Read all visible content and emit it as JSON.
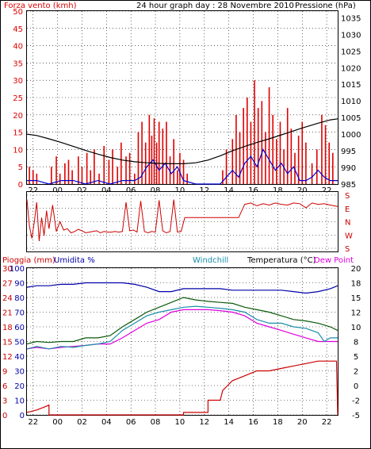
{
  "header": {
    "title": "24 hour graph day : 28 Novembre 2010",
    "wind_label": "Forza vento (kmh)",
    "pressure_label": "Pressione (hPa)"
  },
  "colors": {
    "wind": "#e00000",
    "pressure": "#000000",
    "gust_base": "#0000cc",
    "direction": "#cc0000",
    "rain": "#cc0000",
    "humidity": "#0000aa",
    "windchill": "#1a8fa8",
    "temperature": "#0a5a0a",
    "dew_point": "#dd00dd",
    "frame": "#000000"
  },
  "chart_data": [
    {
      "type": "line",
      "title": "24 hour graph day : 28 Novembre 2010",
      "ylabel": "Forza vento (kmh)",
      "y2label": "Pressione (hPa)",
      "x_tick_labels": [
        "22",
        "00",
        "02",
        "04",
        "06",
        "08",
        "10",
        "12",
        "14",
        "16",
        "18",
        "20",
        "22"
      ],
      "y_ticks": [
        0,
        5,
        10,
        15,
        20,
        25,
        30,
        35,
        40,
        45,
        50
      ],
      "ylim": [
        0,
        50
      ],
      "y2_ticks": [
        985,
        990,
        995,
        1000,
        1005,
        1010,
        1015,
        1020,
        1025,
        1030,
        1035
      ],
      "y2lim": [
        985,
        1037
      ],
      "x_range_hours": [
        -1.8,
        23.6
      ],
      "series": [
        {
          "name": "Pressione",
          "x": [
            -1.8,
            -1,
            0,
            1,
            2,
            3,
            4,
            5,
            6,
            7,
            8,
            9,
            10,
            11,
            12,
            13,
            14,
            15,
            16,
            17,
            18,
            19,
            20,
            21,
            22,
            23,
            23.6
          ],
          "values": [
            1000,
            999.6,
            998.6,
            997.5,
            996.3,
            995.1,
            994.0,
            993.0,
            992.2,
            991.7,
            991.4,
            991.2,
            991.1,
            991.1,
            991.4,
            992.2,
            993.5,
            995.0,
            996.3,
            997.5,
            998.6,
            999.8,
            1001,
            1002.2,
            1003.3,
            1004.3,
            1004.6
          ]
        },
        {
          "name": "Forza vento",
          "x": [
            -1.6,
            -1.3,
            -1,
            0.2,
            0.6,
            0.9,
            1.3,
            1.6,
            1.9,
            2.4,
            2.7,
            3.1,
            3.4,
            3.7,
            4.1,
            4.5,
            4.9,
            5.2,
            5.6,
            5.9,
            6.3,
            6.6,
            7.0,
            7.3,
            7.6,
            7.9,
            8.2,
            8.4,
            8.6,
            8.8,
            9.0,
            9.3,
            9.6,
            9.9,
            10.2,
            10.5,
            10.7,
            11.0,
            11.3,
            14.2,
            14.5,
            15.0,
            15.3,
            15.6,
            15.9,
            16.2,
            16.5,
            16.8,
            17.1,
            17.4,
            17.7,
            18.0,
            18.3,
            18.6,
            18.9,
            19.2,
            19.5,
            19.8,
            20.1,
            20.4,
            20.7,
            21.0,
            21.5,
            21.9,
            22.3,
            22.6,
            22.9,
            23.2
          ],
          "values": [
            5,
            4,
            3,
            5,
            8,
            3,
            6,
            7,
            4,
            8,
            5,
            9,
            4,
            10,
            3,
            11,
            7,
            10,
            5,
            12,
            8,
            9,
            3,
            15,
            18,
            12,
            20,
            14,
            19,
            12,
            18,
            16,
            18,
            8,
            13,
            4,
            9,
            7,
            3,
            4,
            10,
            13,
            20,
            15,
            22,
            25,
            18,
            30,
            22,
            24,
            15,
            28,
            20,
            13,
            18,
            10,
            22,
            16,
            9,
            14,
            18,
            12,
            6,
            10,
            20,
            17,
            12,
            9
          ]
        },
        {
          "name": "Raffiche base",
          "x": [
            -1.8,
            -1,
            0,
            1,
            2,
            3,
            4,
            5,
            6,
            7,
            7.5,
            8,
            8.5,
            9,
            9.5,
            10,
            10.5,
            11,
            12,
            13,
            14,
            14.5,
            15,
            15.5,
            16,
            16.5,
            17,
            17.5,
            18,
            18.5,
            19,
            19.5,
            20,
            20.5,
            21,
            21.5,
            22,
            22.5,
            23,
            23.6
          ],
          "values": [
            1,
            1,
            0,
            1,
            1,
            0,
            1,
            0,
            1,
            1,
            2,
            5,
            7,
            4,
            6,
            3,
            5,
            1,
            0,
            0,
            0,
            2,
            4,
            2,
            6,
            8,
            5,
            10,
            7,
            4,
            6,
            3,
            5,
            1,
            1,
            2,
            4,
            2,
            1,
            1
          ]
        }
      ]
    },
    {
      "type": "line",
      "title": "",
      "y_tick_labels": [
        "S",
        "E",
        "N",
        "W",
        "S"
      ],
      "ylim": [
        0,
        360
      ],
      "series": [
        {
          "name": "Direzione vento",
          "x": [
            -1.8,
            -1.6,
            -1.4,
            -1.2,
            -1.0,
            -0.8,
            -0.6,
            -0.4,
            -0.2,
            0,
            0.3,
            0.6,
            0.9,
            1.2,
            1.5,
            1.8,
            2.1,
            2.4,
            2.7,
            3.0,
            3.3,
            3.6,
            3.9,
            4.2,
            4.5,
            4.8,
            5.1,
            5.4,
            5.7,
            6.0,
            6.3,
            6.6,
            6.9,
            7.2,
            7.5,
            7.8,
            8.1,
            8.4,
            8.7,
            9.0,
            9.3,
            9.6,
            9.9,
            10.2,
            10.5,
            10.8,
            11.1,
            11.4,
            11.7,
            12.0,
            12.5,
            13.0,
            13.5,
            14.0,
            14.5,
            15.0,
            15.5,
            16.0,
            16.5,
            17.0,
            17.5,
            18.0,
            18.5,
            19.0,
            19.5,
            20.0,
            20.5,
            21.0,
            21.5,
            22.0,
            22.5,
            23.0,
            23.6
          ],
          "values": [
            20,
            210,
            300,
            180,
            40,
            320,
            150,
            280,
            100,
            230,
            60,
            250,
            180,
            240,
            230,
            260,
            250,
            235,
            245,
            260,
            255,
            250,
            245,
            260,
            250,
            255,
            255,
            250,
            255,
            250,
            40,
            245,
            240,
            255,
            30,
            250,
            260,
            250,
            255,
            25,
            245,
            260,
            250,
            20,
            255,
            250,
            150,
            150,
            150,
            150,
            150,
            150,
            150,
            150,
            150,
            150,
            150,
            55,
            45,
            65,
            50,
            60,
            45,
            55,
            60,
            45,
            50,
            80,
            45,
            55,
            50,
            60,
            70
          ]
        }
      ]
    },
    {
      "type": "line",
      "title": "",
      "left_axis_label": "Pioggia (mm)",
      "left_axis2_label": "Umidita %",
      "right_axis_label": "Temperatura (°C)",
      "series_labels": [
        "Windchill",
        "Dew Point"
      ],
      "rain_ticks": [
        0,
        3,
        6,
        9,
        12,
        15,
        18,
        21,
        24,
        27,
        30
      ],
      "rain_lim": [
        0,
        30
      ],
      "humidity_ticks": [
        0,
        10,
        20,
        30,
        40,
        50,
        60,
        70,
        80,
        90,
        100
      ],
      "humidity_lim": [
        0,
        100
      ],
      "temp_ticks": [
        -5,
        -2,
        0,
        2,
        5,
        8,
        10,
        12,
        15,
        18,
        20
      ],
      "temp_lim": [
        -5,
        20
      ],
      "x_tick_labels": [
        "22",
        "00",
        "02",
        "04",
        "06",
        "08",
        "10",
        "12",
        "14",
        "16",
        "18",
        "20",
        "22"
      ],
      "series": [
        {
          "name": "Umidita %",
          "x": [
            -1.8,
            -1,
            0,
            1,
            2,
            3,
            4,
            5,
            6,
            7,
            8,
            9,
            10,
            11,
            12,
            13,
            14,
            15,
            16,
            17,
            18,
            19,
            20,
            21,
            22,
            23,
            23.6
          ],
          "values": [
            87,
            88,
            88,
            89,
            89,
            90,
            90,
            90,
            90,
            89,
            87,
            84,
            84,
            86,
            86,
            86,
            86,
            85,
            85,
            85,
            85,
            85,
            84,
            83,
            84,
            86,
            88
          ]
        },
        {
          "name": "Windchill",
          "x": [
            -1.8,
            -1,
            0,
            1,
            2,
            3,
            4,
            5,
            6,
            7,
            8,
            9,
            10,
            11,
            12,
            13,
            14,
            15,
            16,
            17,
            18,
            19,
            20,
            21,
            22,
            22.5,
            23,
            23.6
          ],
          "values": [
            6.5,
            7,
            6.5,
            7.0,
            6.8,
            7.2,
            7.5,
            8,
            9.5,
            10.5,
            11.5,
            12,
            12.5,
            13,
            13.2,
            13,
            12.8,
            12.5,
            12,
            11,
            10.5,
            10.5,
            10,
            9.8,
            9.2,
            8,
            8.5,
            8.5
          ]
        },
        {
          "name": "Temperatura",
          "x": [
            -1.8,
            -1,
            0,
            1,
            2,
            3,
            4,
            5,
            6,
            7,
            8,
            9,
            10,
            11,
            12,
            13,
            14,
            15,
            16,
            17,
            18,
            19,
            20,
            21,
            22,
            23,
            23.6
          ],
          "values": [
            7.5,
            8,
            7.8,
            8,
            8,
            8.5,
            8.5,
            8.8,
            10,
            11,
            12,
            13,
            14,
            15,
            14.5,
            14.2,
            14,
            13.8,
            13,
            12.5,
            12,
            11.5,
            11,
            10.8,
            10.5,
            10,
            9.5
          ]
        },
        {
          "name": "Dew Point",
          "x": [
            -1.8,
            -1,
            0,
            1,
            2,
            3,
            4,
            5,
            6,
            7,
            8,
            9,
            10,
            11,
            12,
            13,
            14,
            15,
            16,
            17,
            18,
            19,
            20,
            21,
            22,
            23,
            23.6
          ],
          "values": [
            6.5,
            6.8,
            6.5,
            6.8,
            7.0,
            7.2,
            7.5,
            7.5,
            8.5,
            9.5,
            10.5,
            11,
            12,
            12.5,
            12.5,
            12.5,
            12.3,
            12,
            11.5,
            10.5,
            10,
            9.5,
            9,
            8.5,
            8,
            8,
            8
          ]
        },
        {
          "name": "Pioggia (mm)",
          "x": [
            -1.8,
            -1,
            -0.5,
            0,
            0,
            2,
            4,
            6,
            8,
            10,
            11,
            11,
            12.5,
            13,
            13,
            14,
            14.2,
            14.6,
            15,
            15.5,
            16,
            16.5,
            17,
            18,
            19,
            20,
            21,
            22,
            23,
            23.5,
            23.6
          ],
          "values": [
            0.5,
            1,
            1.5,
            2,
            0,
            0,
            0,
            0,
            0,
            0,
            0,
            0.5,
            0.5,
            0.5,
            3,
            3,
            5,
            6,
            7,
            7.5,
            8,
            8.5,
            9,
            9,
            9.5,
            10,
            10.5,
            11,
            11,
            11,
            0
          ]
        }
      ]
    }
  ]
}
